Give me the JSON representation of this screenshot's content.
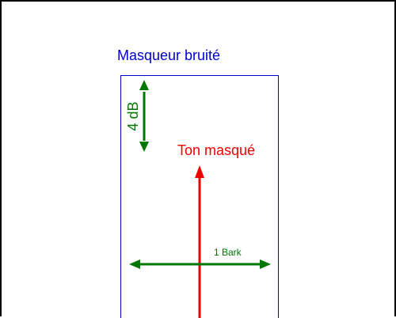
{
  "labels": {
    "masker": "Masqueur bruité",
    "masked_tone": "Ton masqué",
    "level_scale": "4 dB",
    "frequency_scale": "1 Bark"
  },
  "colors": {
    "masker": "#0000cc",
    "masked_tone": "#ee0000",
    "scale": "#007700",
    "frame": "#000000",
    "background": "#ffffff"
  }
}
